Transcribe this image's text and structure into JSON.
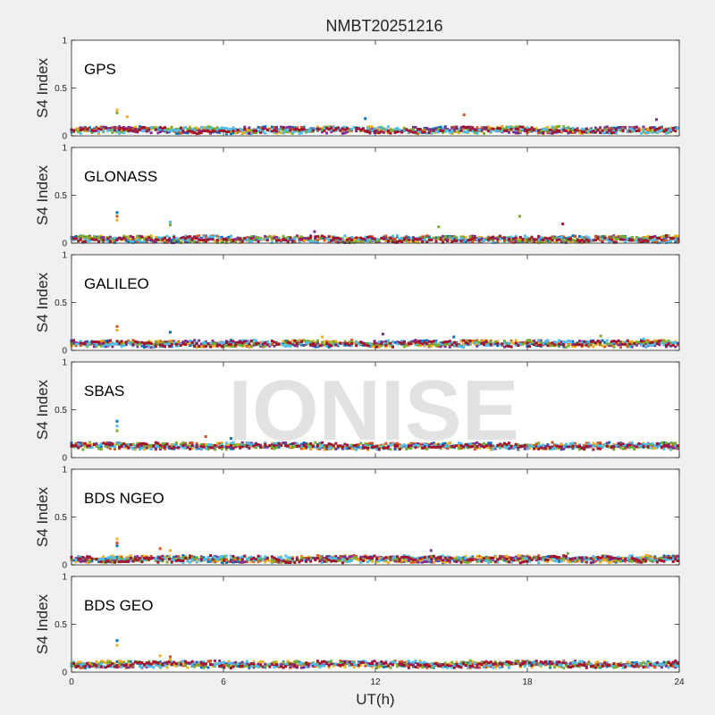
{
  "chart_data": {
    "type": "scatter",
    "title": "NMBT20251216",
    "xlabel": "UT(h)",
    "ylabel": "S4 Index",
    "xlim": [
      0,
      24
    ],
    "ylim": [
      0,
      1
    ],
    "xticks": [
      "0",
      "6",
      "12",
      "18",
      "24"
    ],
    "yticks": [
      "0",
      "0.5",
      "1"
    ],
    "grid": false,
    "watermark": "IONISE",
    "colors": [
      "#0072BD",
      "#D95319",
      "#EDB120",
      "#7E2F8E",
      "#77AC30",
      "#4DBEEE",
      "#A2142F"
    ],
    "panels": [
      {
        "label": "GPS",
        "baseline": 0.06,
        "spikes": [
          [
            1.8,
            0.27,
            2
          ],
          [
            1.8,
            0.24,
            4
          ],
          [
            2.2,
            0.2,
            2
          ],
          [
            15.5,
            0.22,
            1
          ],
          [
            11.6,
            0.18,
            0
          ],
          [
            23.1,
            0.17,
            3
          ]
        ]
      },
      {
        "label": "GLONASS",
        "baseline": 0.04,
        "spikes": [
          [
            1.8,
            0.32,
            0
          ],
          [
            1.8,
            0.28,
            1
          ],
          [
            1.8,
            0.24,
            2
          ],
          [
            3.9,
            0.22,
            5
          ],
          [
            3.9,
            0.19,
            4
          ],
          [
            9.6,
            0.12,
            3
          ],
          [
            14.5,
            0.17,
            4
          ],
          [
            17.7,
            0.28,
            4
          ],
          [
            19.4,
            0.2,
            6
          ]
        ]
      },
      {
        "label": "GALILEO",
        "baseline": 0.07,
        "spikes": [
          [
            1.8,
            0.25,
            1
          ],
          [
            1.8,
            0.21,
            2
          ],
          [
            3.9,
            0.19,
            0
          ],
          [
            9.9,
            0.14,
            2
          ],
          [
            12.3,
            0.17,
            3
          ],
          [
            15.1,
            0.14,
            0
          ],
          [
            20.9,
            0.15,
            4
          ],
          [
            22.6,
            0.12,
            5
          ]
        ]
      },
      {
        "label": "SBAS",
        "baseline": 0.12,
        "spikes": [
          [
            1.8,
            0.38,
            0
          ],
          [
            1.8,
            0.33,
            5
          ],
          [
            1.8,
            0.28,
            4
          ],
          [
            5.3,
            0.22,
            1
          ],
          [
            6.3,
            0.2,
            0
          ]
        ]
      },
      {
        "label": "BDS NGEO",
        "baseline": 0.06,
        "spikes": [
          [
            1.8,
            0.27,
            2
          ],
          [
            1.8,
            0.23,
            1
          ],
          [
            1.8,
            0.2,
            0
          ],
          [
            3.5,
            0.17,
            1
          ],
          [
            3.9,
            0.15,
            2
          ],
          [
            14.2,
            0.15,
            3
          ],
          [
            19.6,
            0.12,
            4
          ]
        ]
      },
      {
        "label": "BDS GEO",
        "baseline": 0.08,
        "spikes": [
          [
            1.8,
            0.33,
            0
          ],
          [
            1.8,
            0.28,
            2
          ],
          [
            3.5,
            0.17,
            2
          ],
          [
            3.9,
            0.16,
            1
          ],
          [
            3.9,
            0.13,
            2
          ]
        ]
      }
    ]
  }
}
